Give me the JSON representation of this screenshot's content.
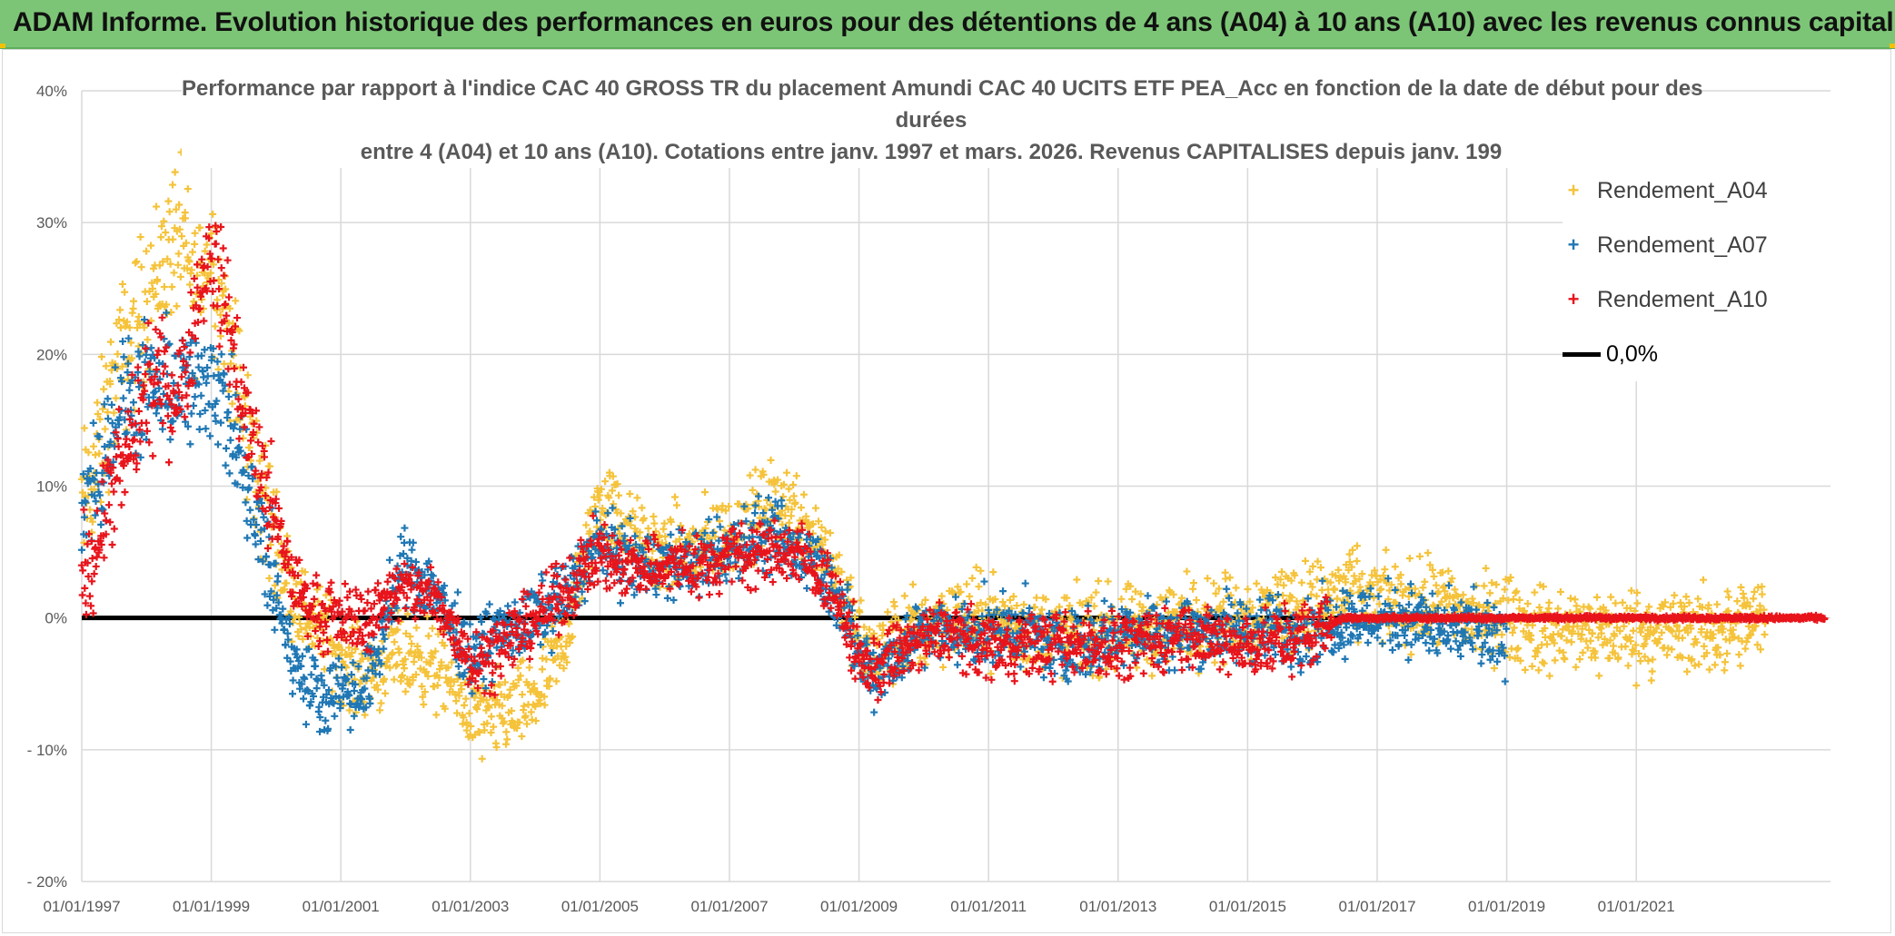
{
  "header": {
    "title": "ADAM Informe. Evolution historique des performances en euros pour des détentions de 4 ans (A04) à 10 ans (A10) avec les revenus connus capitalisés"
  },
  "chart_data": {
    "type": "scatter",
    "title_lines": [
      "Performance par rapport à l'indice CAC 40 GROSS TR  du placement Amundi CAC 40 UCITS ETF PEA_Acc en fonction de la date de début pour des",
      "durées",
      "entre 4 (A04) et 10 ans (A10). Cotations entre janv. 1997 et mars. 2026. Revenus CAPITALISES depuis janv. 199"
    ],
    "xlabel": "",
    "ylabel": "",
    "x_range": [
      "1997-01-01",
      "2023-12-31"
    ],
    "x_ticks": [
      "01/01/1997",
      "01/01/1999",
      "01/01/2001",
      "01/01/2003",
      "01/01/2005",
      "01/01/2007",
      "01/01/2009",
      "01/01/2011",
      "01/01/2013",
      "01/01/2015",
      "01/01/2017",
      "01/01/2019",
      "01/01/2021"
    ],
    "ylim": [
      -20,
      40
    ],
    "y_ticks": [
      40,
      30,
      20,
      10,
      0,
      -10,
      -20
    ],
    "y_tick_labels": [
      "40%",
      "30%",
      "20%",
      "10%",
      "0%",
      "- 10%",
      "- 20%"
    ],
    "grid": true,
    "legend": {
      "position": "top-right"
    },
    "series": [
      {
        "name": "Rendement_A04",
        "marker": "+",
        "color": "#f5c33b",
        "points": [
          [
            "1997-01",
            8
          ],
          [
            "1997-04",
            12
          ],
          [
            "1997-07",
            18
          ],
          [
            "1997-10",
            21
          ],
          [
            "1998-01",
            24
          ],
          [
            "1998-04",
            27
          ],
          [
            "1998-07",
            29
          ],
          [
            "1998-10",
            25
          ],
          [
            "1999-01",
            28
          ],
          [
            "1999-04",
            22
          ],
          [
            "1999-07",
            15
          ],
          [
            "1999-10",
            10
          ],
          [
            "2000-01",
            6
          ],
          [
            "2000-04",
            2
          ],
          [
            "2000-07",
            0
          ],
          [
            "2000-10",
            -1
          ],
          [
            "2001-01",
            -3
          ],
          [
            "2001-04",
            -4
          ],
          [
            "2001-07",
            -4
          ],
          [
            "2001-10",
            -3
          ],
          [
            "2002-01",
            -3
          ],
          [
            "2002-04",
            -3
          ],
          [
            "2002-07",
            -4
          ],
          [
            "2002-10",
            -5
          ],
          [
            "2003-01",
            -7
          ],
          [
            "2003-04",
            -8
          ],
          [
            "2003-07",
            -7
          ],
          [
            "2003-10",
            -7
          ],
          [
            "2004-01",
            -6
          ],
          [
            "2004-04",
            -4
          ],
          [
            "2004-07",
            -1
          ],
          [
            "2004-10",
            4
          ],
          [
            "2005-01",
            9
          ],
          [
            "2005-04",
            8
          ],
          [
            "2005-07",
            6
          ],
          [
            "2005-10",
            5
          ],
          [
            "2006-01",
            5
          ],
          [
            "2006-04",
            5
          ],
          [
            "2006-07",
            5
          ],
          [
            "2006-10",
            6
          ],
          [
            "2007-01",
            6
          ],
          [
            "2007-04",
            7
          ],
          [
            "2007-07",
            8
          ],
          [
            "2007-10",
            9
          ],
          [
            "2008-01",
            8
          ],
          [
            "2008-04",
            7
          ],
          [
            "2008-07",
            5
          ],
          [
            "2008-10",
            2
          ],
          [
            "2009-01",
            -2
          ],
          [
            "2009-04",
            -3
          ],
          [
            "2009-07",
            -2
          ],
          [
            "2009-10",
            -1
          ],
          [
            "2010-01",
            -1
          ],
          [
            "2010-04",
            0
          ],
          [
            "2010-07",
            0
          ],
          [
            "2010-10",
            0
          ],
          [
            "2011-01",
            0
          ],
          [
            "2011-07",
            -1
          ],
          [
            "2012-01",
            -1
          ],
          [
            "2012-07",
            -1
          ],
          [
            "2013-01",
            -1
          ],
          [
            "2013-07",
            -1
          ],
          [
            "2014-01",
            0
          ],
          [
            "2014-07",
            0
          ],
          [
            "2015-01",
            0
          ],
          [
            "2015-07",
            1
          ],
          [
            "2016-01",
            1
          ],
          [
            "2016-07",
            2
          ],
          [
            "2017-01",
            1
          ],
          [
            "2017-07",
            1
          ],
          [
            "2018-01",
            1
          ],
          [
            "2018-07",
            0
          ],
          [
            "2019-01",
            0
          ],
          [
            "2019-07",
            -1
          ],
          [
            "2020-01",
            -1
          ],
          [
            "2020-07",
            -1
          ],
          [
            "2021-01",
            -1
          ],
          [
            "2021-07",
            -1
          ],
          [
            "2022-01",
            -1
          ],
          [
            "2022-07",
            -1
          ],
          [
            "2023-01",
            0
          ]
        ]
      },
      {
        "name": "Rendement_A07",
        "marker": "+",
        "color": "#1f77b4",
        "points": [
          [
            "1997-01",
            9
          ],
          [
            "1997-04",
            11
          ],
          [
            "1997-07",
            15
          ],
          [
            "1997-10",
            17
          ],
          [
            "1998-01",
            17
          ],
          [
            "1998-04",
            17
          ],
          [
            "1998-07",
            18
          ],
          [
            "1998-10",
            17
          ],
          [
            "1999-01",
            19
          ],
          [
            "1999-04",
            15
          ],
          [
            "1999-07",
            11
          ],
          [
            "1999-10",
            6
          ],
          [
            "2000-01",
            2
          ],
          [
            "2000-04",
            -3
          ],
          [
            "2000-07",
            -5
          ],
          [
            "2000-10",
            -6
          ],
          [
            "2001-01",
            -5
          ],
          [
            "2001-04",
            -6
          ],
          [
            "2001-07",
            -4
          ],
          [
            "2001-10",
            1
          ],
          [
            "2002-01",
            4
          ],
          [
            "2002-04",
            3
          ],
          [
            "2002-07",
            2
          ],
          [
            "2002-10",
            -1
          ],
          [
            "2003-01",
            -3
          ],
          [
            "2003-04",
            -2
          ],
          [
            "2003-07",
            -1
          ],
          [
            "2003-10",
            -1
          ],
          [
            "2004-01",
            0
          ],
          [
            "2004-04",
            1
          ],
          [
            "2004-07",
            2
          ],
          [
            "2004-10",
            4
          ],
          [
            "2005-01",
            6
          ],
          [
            "2005-04",
            5
          ],
          [
            "2005-07",
            4
          ],
          [
            "2005-10",
            4
          ],
          [
            "2006-01",
            4
          ],
          [
            "2006-04",
            4
          ],
          [
            "2006-07",
            4
          ],
          [
            "2006-10",
            5
          ],
          [
            "2007-01",
            5
          ],
          [
            "2007-04",
            6
          ],
          [
            "2007-07",
            6
          ],
          [
            "2007-10",
            6
          ],
          [
            "2008-01",
            5
          ],
          [
            "2008-04",
            5
          ],
          [
            "2008-07",
            3
          ],
          [
            "2008-10",
            1
          ],
          [
            "2009-01",
            -3
          ],
          [
            "2009-04",
            -4
          ],
          [
            "2009-07",
            -3
          ],
          [
            "2009-10",
            -2
          ],
          [
            "2010-01",
            -1
          ],
          [
            "2010-04",
            -1
          ],
          [
            "2010-07",
            -1
          ],
          [
            "2010-10",
            -1
          ],
          [
            "2011-01",
            -1
          ],
          [
            "2011-07",
            -1
          ],
          [
            "2012-01",
            -2
          ],
          [
            "2012-07",
            -2
          ],
          [
            "2013-01",
            -1
          ],
          [
            "2013-07",
            -1
          ],
          [
            "2014-01",
            -1
          ],
          [
            "2014-07",
            -1
          ],
          [
            "2015-01",
            -1
          ],
          [
            "2015-07",
            -1
          ],
          [
            "2016-01",
            -1
          ],
          [
            "2016-07",
            0
          ],
          [
            "2017-01",
            0
          ],
          [
            "2017-07",
            0
          ],
          [
            "2018-01",
            -1
          ],
          [
            "2018-07",
            -1
          ],
          [
            "2019-01",
            -2
          ]
        ]
      },
      {
        "name": "Rendement_A10",
        "marker": "+",
        "color": "#e8141b",
        "points": [
          [
            "1997-01",
            3
          ],
          [
            "1997-04",
            6
          ],
          [
            "1997-07",
            10
          ],
          [
            "1997-10",
            13
          ],
          [
            "1998-01",
            17
          ],
          [
            "1998-04",
            18
          ],
          [
            "1998-07",
            17
          ],
          [
            "1998-10",
            23
          ],
          [
            "1999-01",
            28
          ],
          [
            "1999-04",
            23
          ],
          [
            "1999-07",
            16
          ],
          [
            "1999-10",
            11
          ],
          [
            "2000-01",
            7
          ],
          [
            "2000-04",
            3
          ],
          [
            "2000-07",
            1
          ],
          [
            "2000-10",
            0
          ],
          [
            "2001-01",
            0
          ],
          [
            "2001-04",
            0
          ],
          [
            "2001-07",
            0
          ],
          [
            "2001-10",
            2
          ],
          [
            "2002-01",
            2
          ],
          [
            "2002-04",
            2
          ],
          [
            "2002-07",
            1
          ],
          [
            "2002-10",
            -1
          ],
          [
            "2003-01",
            -3
          ],
          [
            "2003-04",
            -3
          ],
          [
            "2003-07",
            -2
          ],
          [
            "2003-10",
            -1
          ],
          [
            "2004-01",
            0
          ],
          [
            "2004-04",
            1
          ],
          [
            "2004-07",
            2
          ],
          [
            "2004-10",
            4
          ],
          [
            "2005-01",
            5
          ],
          [
            "2005-04",
            4
          ],
          [
            "2005-07",
            4
          ],
          [
            "2005-10",
            4
          ],
          [
            "2006-01",
            4
          ],
          [
            "2006-04",
            4
          ],
          [
            "2006-07",
            4
          ],
          [
            "2006-10",
            4
          ],
          [
            "2007-01",
            5
          ],
          [
            "2007-04",
            5
          ],
          [
            "2007-07",
            5
          ],
          [
            "2007-10",
            5
          ],
          [
            "2008-01",
            5
          ],
          [
            "2008-04",
            4
          ],
          [
            "2008-07",
            3
          ],
          [
            "2008-10",
            0
          ],
          [
            "2009-01",
            -3
          ],
          [
            "2009-04",
            -4
          ],
          [
            "2009-07",
            -3
          ],
          [
            "2009-10",
            -2
          ],
          [
            "2010-01",
            -2
          ],
          [
            "2010-04",
            -1
          ],
          [
            "2010-07",
            -1
          ],
          [
            "2010-10",
            -2
          ],
          [
            "2011-01",
            -2
          ],
          [
            "2011-07",
            -2
          ],
          [
            "2012-01",
            -2
          ],
          [
            "2012-07",
            -2
          ],
          [
            "2013-01",
            -2
          ],
          [
            "2013-07",
            -2
          ],
          [
            "2014-01",
            -1
          ],
          [
            "2014-07",
            -2
          ],
          [
            "2015-01",
            -2
          ],
          [
            "2015-07",
            -2
          ],
          [
            "2016-01",
            -1
          ],
          [
            "2016-07",
            0
          ],
          [
            "2017-01",
            0
          ],
          [
            "2018-01",
            0
          ],
          [
            "2019-01",
            0
          ],
          [
            "2020-01",
            0
          ],
          [
            "2021-01",
            0
          ],
          [
            "2022-01",
            0
          ],
          [
            "2023-01",
            0
          ],
          [
            "2023-12",
            0
          ]
        ]
      },
      {
        "name": "0,0%",
        "type": "line",
        "color": "#000000",
        "points": [
          [
            "1997-01",
            0
          ],
          [
            "2019-01",
            0
          ]
        ]
      }
    ]
  }
}
